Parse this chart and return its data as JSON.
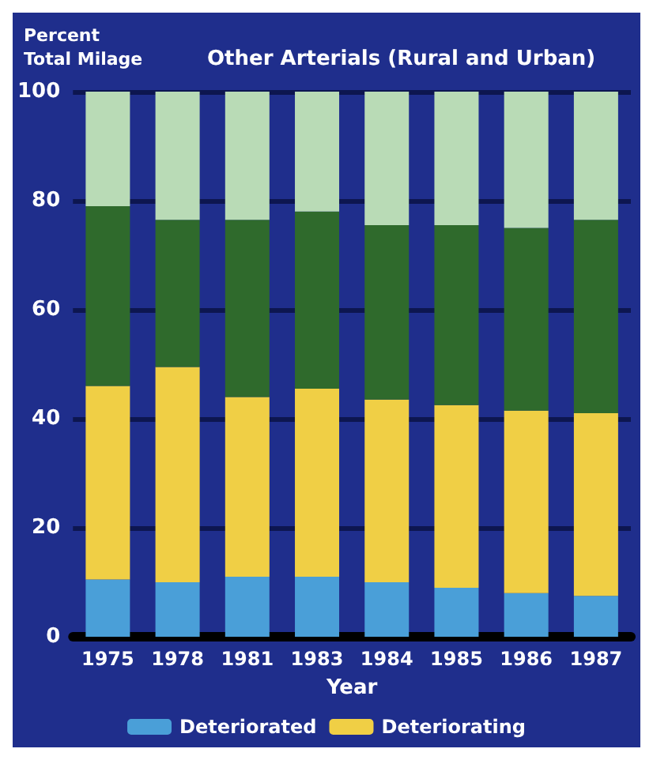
{
  "chart_data": {
    "type": "bar",
    "title": "Other Arterials (Rural and Urban)",
    "ylabel": "Percent\nTotal Milage",
    "xlabel": "Year",
    "stacked": true,
    "categories": [
      "1975",
      "1978",
      "1981",
      "1983",
      "1984",
      "1985",
      "1986",
      "1987"
    ],
    "series": [
      {
        "name": "Deteriorated",
        "color": "#4a9fd8",
        "values": [
          10.5,
          10,
          11,
          11,
          10,
          9,
          8,
          7.5
        ]
      },
      {
        "name": "Deteriorating",
        "color": "#f0cf45",
        "values": [
          35.5,
          39.5,
          33,
          34.5,
          33.5,
          33.5,
          33.5,
          33.5
        ]
      },
      {
        "color": "#2f6a2c",
        "values": [
          33,
          27,
          32.5,
          32.5,
          32,
          33,
          33.5,
          35.5
        ]
      },
      {
        "color": "#b9dbb6",
        "values": [
          21,
          23.5,
          23.5,
          22,
          24.5,
          24.5,
          25,
          23.5
        ]
      }
    ],
    "ylim": [
      0,
      100
    ],
    "yticks": [
      0,
      20,
      40,
      60,
      80,
      100
    ],
    "grid": "y",
    "legend": "bottom"
  }
}
